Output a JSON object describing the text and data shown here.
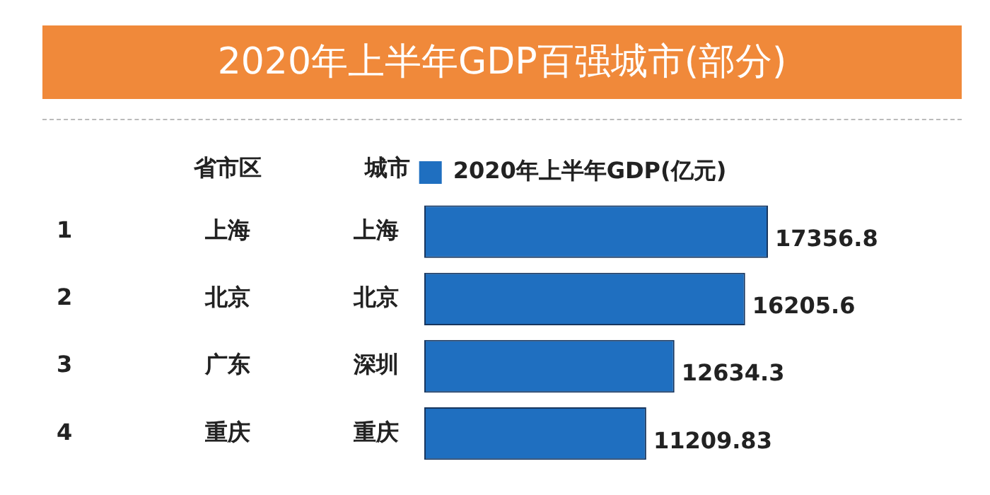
{
  "chart_data": {
    "type": "bar",
    "orientation": "horizontal",
    "title": "2020年上半年GDP百强城市(部分)",
    "ylabel": "城市",
    "categories": [
      "上海",
      "北京",
      "深圳",
      "重庆"
    ],
    "series": [
      {
        "name": "2020年上半年GDP(亿元)",
        "color": "#1f6fc0",
        "values": [
          17356.8,
          16205.6,
          12634.3,
          11209.83
        ]
      }
    ],
    "data_labels": true,
    "legend": "top",
    "tick_labels": "y",
    "annotations": [
      "省市区",
      "1",
      "2",
      "3",
      "4",
      "上海",
      "北京",
      "广东",
      "重庆"
    ]
  }
}
